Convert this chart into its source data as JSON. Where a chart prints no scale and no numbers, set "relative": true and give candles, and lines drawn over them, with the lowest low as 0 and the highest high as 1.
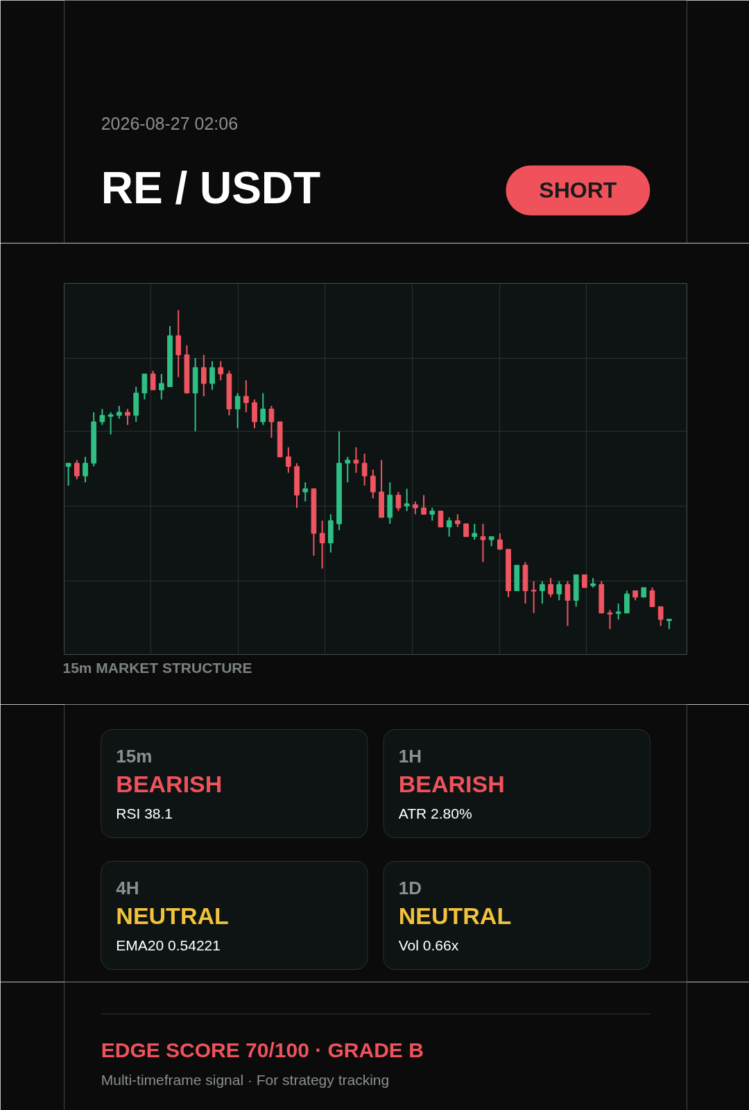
{
  "chart_data": {
    "type": "candlestick",
    "title": "RE / USDT",
    "subtitle": "2026-08-27 02:06",
    "relative": true,
    "grid": true,
    "categories": [
      null,
      null,
      null,
      null,
      null,
      null,
      null,
      null,
      null,
      null,
      null,
      null,
      null,
      null,
      null,
      null,
      null,
      null,
      null,
      null,
      null,
      null,
      null,
      null,
      null,
      null,
      null,
      null,
      null,
      null,
      null,
      null,
      null,
      null,
      null,
      null,
      null,
      null,
      null,
      null,
      null,
      null,
      null,
      null,
      null,
      null,
      null,
      null,
      null,
      null,
      null,
      null,
      null,
      null,
      null,
      null,
      null,
      null,
      null,
      null,
      null,
      null,
      null,
      null,
      null,
      null,
      null,
      null,
      null,
      null,
      null,
      null
    ],
    "ohlc": [
      [
        0.51,
        0.52,
        0.45,
        0.52
      ],
      [
        0.52,
        0.53,
        0.47,
        0.48
      ],
      [
        0.48,
        0.54,
        0.46,
        0.52
      ],
      [
        0.52,
        0.68,
        0.51,
        0.65
      ],
      [
        0.65,
        0.69,
        0.64,
        0.67
      ],
      [
        0.667,
        0.68,
        0.61,
        0.672
      ],
      [
        0.67,
        0.7,
        0.66,
        0.68
      ],
      [
        0.68,
        0.69,
        0.64,
        0.67
      ],
      [
        0.67,
        0.76,
        0.65,
        0.74
      ],
      [
        0.74,
        0.8,
        0.72,
        0.8
      ],
      [
        0.8,
        0.81,
        0.75,
        0.75
      ],
      [
        0.75,
        0.8,
        0.72,
        0.77
      ],
      [
        0.76,
        0.95,
        0.76,
        0.92
      ],
      [
        0.92,
        1.0,
        0.79,
        0.86
      ],
      [
        0.86,
        0.89,
        0.74,
        0.74
      ],
      [
        0.74,
        0.85,
        0.62,
        0.82
      ],
      [
        0.82,
        0.86,
        0.73,
        0.77
      ],
      [
        0.77,
        0.84,
        0.75,
        0.82
      ],
      [
        0.82,
        0.84,
        0.78,
        0.8
      ],
      [
        0.8,
        0.81,
        0.67,
        0.69
      ],
      [
        0.69,
        0.74,
        0.63,
        0.73
      ],
      [
        0.73,
        0.78,
        0.68,
        0.71
      ],
      [
        0.71,
        0.72,
        0.63,
        0.65
      ],
      [
        0.65,
        0.74,
        0.64,
        0.69
      ],
      [
        0.69,
        0.7,
        0.6,
        0.65
      ],
      [
        0.65,
        0.65,
        0.54,
        0.54
      ],
      [
        0.54,
        0.57,
        0.49,
        0.51
      ],
      [
        0.51,
        0.52,
        0.38,
        0.42
      ],
      [
        0.43,
        0.46,
        0.4,
        0.44
      ],
      [
        0.44,
        0.44,
        0.23,
        0.3
      ],
      [
        0.3,
        0.34,
        0.19,
        0.27
      ],
      [
        0.27,
        0.36,
        0.24,
        0.34
      ],
      [
        0.33,
        0.62,
        0.31,
        0.52
      ],
      [
        0.52,
        0.54,
        0.46,
        0.53
      ],
      [
        0.53,
        0.57,
        0.49,
        0.52
      ],
      [
        0.52,
        0.55,
        0.45,
        0.48
      ],
      [
        0.48,
        0.5,
        0.41,
        0.43
      ],
      [
        0.43,
        0.53,
        0.35,
        0.35
      ],
      [
        0.35,
        0.46,
        0.33,
        0.42
      ],
      [
        0.42,
        0.43,
        0.37,
        0.38
      ],
      [
        0.386,
        0.44,
        0.37,
        0.393
      ],
      [
        0.39,
        0.4,
        0.36,
        0.38
      ],
      [
        0.38,
        0.42,
        0.36,
        0.36
      ],
      [
        0.36,
        0.38,
        0.34,
        0.37
      ],
      [
        0.37,
        0.37,
        0.32,
        0.32
      ],
      [
        0.32,
        0.35,
        0.29,
        0.34
      ],
      [
        0.34,
        0.36,
        0.32,
        0.33
      ],
      [
        0.33,
        0.33,
        0.29,
        0.29
      ],
      [
        0.29,
        0.33,
        0.28,
        0.3
      ],
      [
        0.29,
        0.33,
        0.21,
        0.28
      ],
      [
        0.28,
        0.29,
        0.26,
        0.29
      ],
      [
        0.28,
        0.3,
        0.25,
        0.25
      ],
      [
        0.25,
        0.25,
        0.1,
        0.12
      ],
      [
        0.12,
        0.2,
        0.12,
        0.2
      ],
      [
        0.2,
        0.21,
        0.08,
        0.12
      ],
      [
        0.122,
        0.15,
        0.05,
        0.119
      ],
      [
        0.12,
        0.15,
        0.08,
        0.14
      ],
      [
        0.14,
        0.16,
        0.1,
        0.11
      ],
      [
        0.11,
        0.15,
        0.09,
        0.14
      ],
      [
        0.14,
        0.15,
        0.01,
        0.09
      ],
      [
        0.09,
        0.17,
        0.07,
        0.17
      ],
      [
        0.17,
        0.17,
        0.13,
        0.13
      ],
      [
        0.136,
        0.16,
        0.13,
        0.142
      ],
      [
        0.14,
        0.15,
        0.05,
        0.05
      ],
      [
        0.051,
        0.06,
        0,
        0.047
      ],
      [
        0.049,
        0.08,
        0.03,
        0.054
      ],
      [
        0.05,
        0.12,
        0.05,
        0.11
      ],
      [
        0.12,
        0.12,
        0.09,
        0.1
      ],
      [
        0.1,
        0.13,
        0.1,
        0.13
      ],
      [
        0.12,
        0.13,
        0.07,
        0.07
      ],
      [
        0.07,
        0.07,
        0.01,
        0.03
      ],
      [
        0.026,
        0.031,
        0,
        0.031
      ]
    ],
    "annotations": [
      "SHORT",
      "15m MARKET STRUCTURE",
      "15m",
      "BEARISH",
      "RSI 38.1",
      "1H",
      "BEARISH",
      "ATR 2.80%",
      "4H",
      "NEUTRAL",
      "EMA20 0.54221",
      "1D",
      "NEUTRAL",
      "Vol 0.66x",
      "EDGE SCORE  70/100  ·  GRADE B",
      "Multi-timeframe signal · For strategy tracking"
    ]
  }
}
